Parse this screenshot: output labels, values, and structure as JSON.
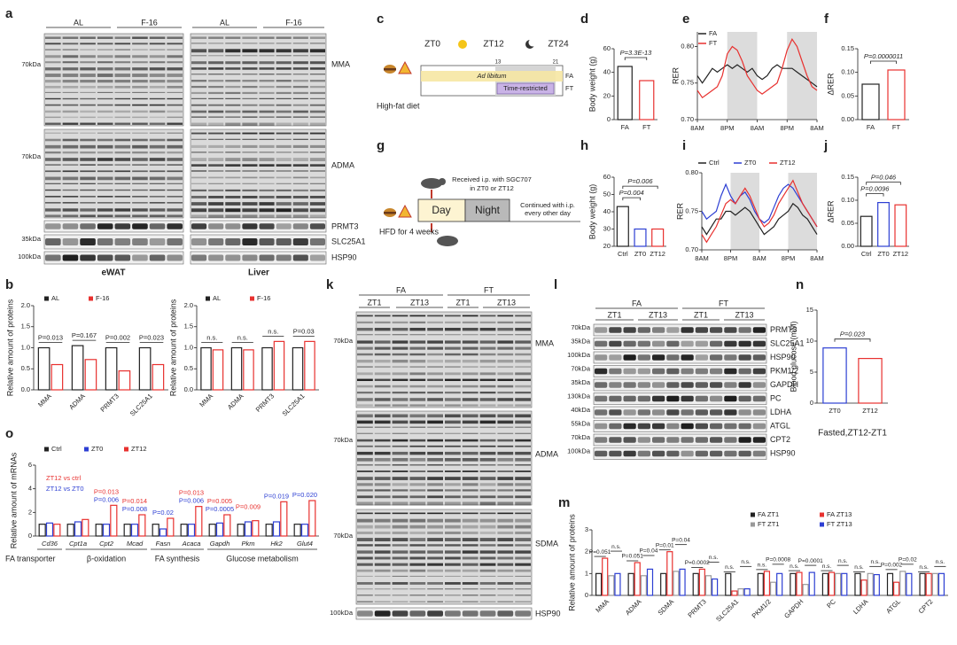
{
  "blots": [
    {
      "panel": "a",
      "headers": [
        "AL",
        "F-16",
        "AL",
        "F-16"
      ],
      "rows": [
        "MMA",
        "ADMA",
        "PRMT3",
        "SLC25A1",
        "HSP90"
      ],
      "markers": [
        "70kDa",
        "70kDa",
        "35kDa",
        "100kDa"
      ],
      "tissues": [
        "eWAT",
        "Liver"
      ]
    },
    {
      "panel": "k",
      "groups": [
        "FA",
        "FT"
      ],
      "headers": [
        "ZT1",
        "ZT13",
        "ZT1",
        "ZT13"
      ],
      "rows": [
        "MMA",
        "ADMA",
        "SDMA",
        "HSP90"
      ],
      "markers": [
        "70kDa",
        "70kDa",
        "70kDa",
        "100kDa"
      ]
    },
    {
      "panel": "l",
      "groups": [
        "FA",
        "FT"
      ],
      "headers": [
        "ZT1",
        "ZT13",
        "ZT1",
        "ZT13"
      ],
      "rows": [
        "PRMT3",
        "SLC25A1",
        "HSP90",
        "PKM1/2",
        "GAPDH",
        "PC",
        "LDHA",
        "ATGL",
        "CPT2",
        "HSP90"
      ],
      "markers": [
        "70kDa",
        "35kDa",
        "100kDa",
        "70kDa",
        "35kDa",
        "130kDa",
        "40kDa",
        "55kDa",
        "70kDa",
        "100kDa"
      ]
    }
  ],
  "diagrams": [
    {
      "panel": "c",
      "times": [
        "ZT0",
        "ZT12",
        "ZT24"
      ],
      "hours": [
        "13",
        "21"
      ],
      "bands": [
        "Ad libitum",
        "Time-restricted"
      ],
      "groups": [
        "FA",
        "FT"
      ],
      "diet": "High-fat diet"
    },
    {
      "panel": "g",
      "injection": [
        "Received i.p. with SGC707",
        "in ZT0 or ZT12"
      ],
      "phases": [
        "Day",
        "Night"
      ],
      "continued": [
        "Continued with i.p.",
        "every other day"
      ],
      "diet": "HFD for 4 weeks"
    }
  ],
  "chart_data": [
    {
      "panel": "b",
      "type": "bar",
      "ylabel": "Relative amount of proteins",
      "categories": [
        "MMA",
        "ADMA",
        "PRMT3",
        "SLC25A1"
      ],
      "series": [
        {
          "name": "AL",
          "color": "#222222",
          "values": [
            1.0,
            1.05,
            1.0,
            1.0
          ]
        },
        {
          "name": "F-16",
          "color": "#e8312f",
          "values": [
            0.6,
            0.72,
            0.45,
            0.6
          ]
        }
      ],
      "ylim": [
        0,
        2
      ],
      "yticks": [
        {
          "value": 0,
          "label": "0.0"
        },
        {
          "value": 0.5,
          "label": "0.5"
        },
        {
          "value": 1,
          "label": "1.0"
        },
        {
          "value": 1.5,
          "label": "1.5"
        },
        {
          "value": 2,
          "label": "2.0"
        }
      ],
      "annotations": [
        "P=0.013",
        "P=0.167",
        "P=0.002",
        "P=0.023"
      ]
    },
    {
      "type": "bar",
      "ylabel": "Relative amount of proteins",
      "categories": [
        "MMA",
        "ADMA",
        "PRMT3",
        "SLC25A1"
      ],
      "series": [
        {
          "name": "AL",
          "color": "#222222",
          "values": [
            1.0,
            1.0,
            1.0,
            1.0
          ]
        },
        {
          "name": "F-16",
          "color": "#e8312f",
          "values": [
            0.95,
            0.95,
            1.15,
            1.15
          ]
        }
      ],
      "ylim": [
        0,
        2
      ],
      "yticks": [
        {
          "value": 0,
          "label": "0.0"
        },
        {
          "value": 0.5,
          "label": "0.5"
        },
        {
          "value": 1,
          "label": "1.0"
        },
        {
          "value": 1.5,
          "label": "1.5"
        },
        {
          "value": 2,
          "label": "2.0"
        }
      ],
      "annotations": [
        "n.s.",
        "n.s.",
        "n.s.",
        "P=0.03"
      ]
    },
    {
      "panel": "d",
      "type": "bar",
      "ylabel": "Body weight (g)",
      "categories": [
        "FA",
        "FT"
      ],
      "values": [
        45,
        33
      ],
      "colors": [
        "#222222",
        "#e8312f"
      ],
      "ylim": [
        0,
        60
      ],
      "yticks": [
        0,
        20,
        40,
        60
      ],
      "comparisons": [
        "P=3.3E-13"
      ]
    },
    {
      "panel": "e",
      "type": "line",
      "ylabel": "RER",
      "x": [
        0,
        2,
        4,
        6,
        8,
        10,
        12,
        14,
        16,
        18,
        20,
        22,
        24,
        26,
        28,
        30,
        32,
        34,
        36,
        38,
        40,
        42,
        44,
        46,
        48
      ],
      "xlim": [
        0,
        48
      ],
      "xticks": [
        {
          "value": 0,
          "label": "8AM"
        },
        {
          "value": 12,
          "label": "8PM"
        },
        {
          "value": 24,
          "label": "8AM"
        },
        {
          "value": 36,
          "label": "8PM"
        },
        {
          "value": 48,
          "label": "8AM"
        }
      ],
      "shaded": [
        [
          12,
          24
        ],
        [
          36,
          48
        ]
      ],
      "series": [
        {
          "name": "FA",
          "color": "#222222",
          "values": [
            0.76,
            0.75,
            0.76,
            0.77,
            0.765,
            0.77,
            0.775,
            0.77,
            0.775,
            0.77,
            0.765,
            0.77,
            0.76,
            0.755,
            0.76,
            0.77,
            0.775,
            0.77,
            0.77,
            0.77,
            0.765,
            0.76,
            0.755,
            0.75,
            0.745
          ]
        },
        {
          "name": "FT",
          "color": "#e8312f",
          "values": [
            0.74,
            0.73,
            0.735,
            0.74,
            0.745,
            0.76,
            0.79,
            0.8,
            0.795,
            0.78,
            0.76,
            0.75,
            0.74,
            0.735,
            0.74,
            0.745,
            0.75,
            0.77,
            0.795,
            0.81,
            0.8,
            0.78,
            0.76,
            0.745,
            0.74
          ]
        }
      ],
      "ylim": [
        0.7,
        0.82
      ],
      "yticks": [
        {
          "value": 0.7,
          "label": "0.70"
        },
        {
          "value": 0.75,
          "label": "0.75"
        },
        {
          "value": 0.8,
          "label": "0.80"
        }
      ]
    },
    {
      "panel": "f",
      "type": "bar",
      "ylabel": "ΔRER",
      "categories": [
        "FA",
        "FT"
      ],
      "values": [
        0.075,
        0.105
      ],
      "colors": [
        "#222222",
        "#e8312f"
      ],
      "ylim": [
        0,
        0.15
      ],
      "yticks": [
        {
          "value": 0,
          "label": "0.00"
        },
        {
          "value": 0.05,
          "label": "0.05"
        },
        {
          "value": 0.1,
          "label": "0.10"
        },
        {
          "value": 0.15,
          "label": "0.15"
        }
      ],
      "comparisons": [
        "P=0.0000011"
      ]
    },
    {
      "panel": "h",
      "type": "bar",
      "ylabel": "Body weight (g)",
      "categories": [
        "Ctrl",
        "ZT0",
        "ZT12"
      ],
      "values": [
        43,
        30,
        30
      ],
      "colors": [
        "#222222",
        "#2d3fd3",
        "#e8312f"
      ],
      "ylim": [
        20,
        60
      ],
      "yticks": [
        20,
        30,
        40,
        50,
        60
      ],
      "comparisons": [
        "P=0.004",
        "P=0.006"
      ]
    },
    {
      "panel": "i",
      "type": "line",
      "ylabel": "RER",
      "x": [
        0,
        2,
        4,
        6,
        8,
        10,
        12,
        14,
        16,
        18,
        20,
        22,
        24,
        26,
        28,
        30,
        32,
        34,
        36,
        38,
        40,
        42,
        44,
        46,
        48
      ],
      "xlim": [
        0,
        48
      ],
      "xticks": [
        {
          "value": 0,
          "label": "8AM"
        },
        {
          "value": 12,
          "label": "8PM"
        },
        {
          "value": 24,
          "label": "8AM"
        },
        {
          "value": 36,
          "label": "8PM"
        },
        {
          "value": 48,
          "label": "8AM"
        }
      ],
      "shaded": [
        [
          12,
          24
        ],
        [
          36,
          48
        ]
      ],
      "series": [
        {
          "name": "Ctrl",
          "color": "#222222",
          "values": [
            0.73,
            0.72,
            0.73,
            0.74,
            0.74,
            0.75,
            0.75,
            0.745,
            0.75,
            0.755,
            0.75,
            0.74,
            0.73,
            0.72,
            0.725,
            0.73,
            0.74,
            0.745,
            0.75,
            0.76,
            0.755,
            0.745,
            0.74,
            0.73,
            0.72
          ]
        },
        {
          "name": "ZT0",
          "color": "#2d3fd3",
          "values": [
            0.75,
            0.74,
            0.745,
            0.75,
            0.77,
            0.785,
            0.77,
            0.76,
            0.77,
            0.775,
            0.765,
            0.75,
            0.74,
            0.735,
            0.74,
            0.755,
            0.77,
            0.78,
            0.785,
            0.78,
            0.77,
            0.76,
            0.75,
            0.74,
            0.73
          ]
        },
        {
          "name": "ZT12",
          "color": "#e8312f",
          "values": [
            0.72,
            0.71,
            0.72,
            0.73,
            0.745,
            0.76,
            0.765,
            0.76,
            0.77,
            0.78,
            0.77,
            0.755,
            0.74,
            0.73,
            0.735,
            0.745,
            0.76,
            0.77,
            0.78,
            0.79,
            0.775,
            0.76,
            0.75,
            0.74,
            0.73
          ]
        }
      ],
      "ylim": [
        0.7,
        0.8
      ],
      "yticks": [
        {
          "value": 0.7,
          "label": "0.70"
        },
        {
          "value": 0.75,
          "label": "0.75"
        },
        {
          "value": 0.8,
          "label": "0.80"
        }
      ]
    },
    {
      "panel": "j",
      "type": "bar",
      "ylabel": "ΔRER",
      "categories": [
        "Ctrl",
        "ZT0",
        "ZT12"
      ],
      "values": [
        0.065,
        0.095,
        0.09
      ],
      "colors": [
        "#222222",
        "#2d3fd3",
        "#e8312f"
      ],
      "ylim": [
        0,
        0.15
      ],
      "yticks": [
        {
          "value": 0,
          "label": "0.00"
        },
        {
          "value": 0.05,
          "label": "0.05"
        },
        {
          "value": 0.1,
          "label": "0.10"
        },
        {
          "value": 0.15,
          "label": "0.15"
        }
      ],
      "comparisons": [
        "P=0.0096",
        "P=0.046"
      ]
    },
    {
      "panel": "n",
      "type": "bar",
      "ylabel": "Blood glucose (mM)",
      "categories": [
        "ZT0",
        "ZT12"
      ],
      "values": [
        8.9,
        7.2
      ],
      "colors": [
        "#2d3fd3",
        "#e8312f"
      ],
      "ylim": [
        0,
        15
      ],
      "yticks": [
        0,
        5,
        10,
        15
      ],
      "comparisons": [
        "P=0.023"
      ],
      "xlabel": "Fasted,ZT12-ZT1"
    },
    {
      "panel": "o",
      "type": "bar",
      "ylabel": "Relative amount of mRNAs",
      "categories": [
        "Cd36",
        "Cpt1a",
        "Cpt2",
        "Mcad",
        "Fasn",
        "Acaca",
        "Gapdh",
        "Pkm",
        "Hk2",
        "Glut4"
      ],
      "series": [
        {
          "name": "Ctrl",
          "color": "#222222",
          "values": [
            1,
            1,
            1,
            1,
            1,
            1,
            1,
            1,
            1,
            1
          ]
        },
        {
          "name": "ZT0",
          "color": "#2d3fd3",
          "values": [
            1.1,
            1.2,
            1.0,
            1.0,
            0.6,
            1.0,
            1.1,
            1.2,
            1.2,
            1.0
          ]
        },
        {
          "name": "ZT12",
          "color": "#e8312f",
          "values": [
            1.0,
            1.4,
            2.6,
            1.8,
            1.5,
            2.5,
            1.8,
            1.3,
            2.9,
            3.0
          ]
        }
      ],
      "ylim": [
        0,
        6
      ],
      "yticks": [
        0,
        2,
        4,
        6
      ],
      "notes": [
        {
          "text": "ZT12 vs ctrl",
          "color": "#e8312f"
        },
        {
          "text": "ZT12 vs ZT0",
          "color": "#2d3fd3"
        }
      ],
      "p_rows": [
        [
          null,
          null,
          "P=0.013",
          "P=0.014",
          null,
          "P=0.013",
          "P=0.005",
          "P=0.009",
          null,
          null
        ],
        [
          null,
          null,
          "P=0.006",
          "P=0.008",
          "P=0.02",
          "P=0.006",
          "P=0.0005",
          null,
          "P=0.019",
          "P=0.020"
        ]
      ],
      "groups": [
        "FA transporter",
        "β-oxidation",
        "FA synthesis",
        "Glucose metabolism"
      ]
    },
    {
      "panel": "m",
      "type": "bar",
      "ylabel": "Relative amount of proteins",
      "categories": [
        "MMA",
        "ADMA",
        "SDMA",
        "PRMT3",
        "SLC25A1",
        "PKM1/2",
        "GAPDH",
        "PC",
        "LDHA",
        "ATGL",
        "CPT2"
      ],
      "series": [
        {
          "name": "FA ZT1",
          "color": "#222222",
          "values": [
            1,
            1,
            1,
            1,
            1,
            1,
            1,
            1,
            1,
            1,
            1
          ]
        },
        {
          "name": "FA ZT13",
          "color": "#e8312f",
          "values": [
            1.7,
            1.5,
            2.0,
            1.2,
            0.2,
            1.1,
            1.05,
            1.05,
            0.7,
            0.6,
            1.0
          ]
        },
        {
          "name": "FT ZT1",
          "color": "#999999",
          "values": [
            0.9,
            0.9,
            1.1,
            0.9,
            0.3,
            0.6,
            0.5,
            1.0,
            1.0,
            1.1,
            1.0
          ]
        },
        {
          "name": "FT ZT13",
          "color": "#2d3fd3",
          "values": [
            1.0,
            1.2,
            1.2,
            0.75,
            0.3,
            1.0,
            1.05,
            1.0,
            0.95,
            1.0,
            1.0
          ]
        }
      ],
      "ylim": [
        0,
        3
      ],
      "yticks": [
        0,
        1,
        2,
        3
      ],
      "p_rows": [
        [
          "P=0.051",
          "P=0.051",
          "P=0.01",
          "P=0.0002",
          "n.s.",
          "n.s.",
          "n.s.",
          "n.s.",
          "n.s.",
          "P=0.002",
          "n.s."
        ],
        [
          "n.s.",
          "P=0.04",
          "P=0.04",
          "n.s.",
          "n.s.",
          "P=0.0008",
          "P=0.0001",
          "n.s.",
          "n.s.",
          "P=0.02",
          "n.s."
        ]
      ]
    }
  ]
}
